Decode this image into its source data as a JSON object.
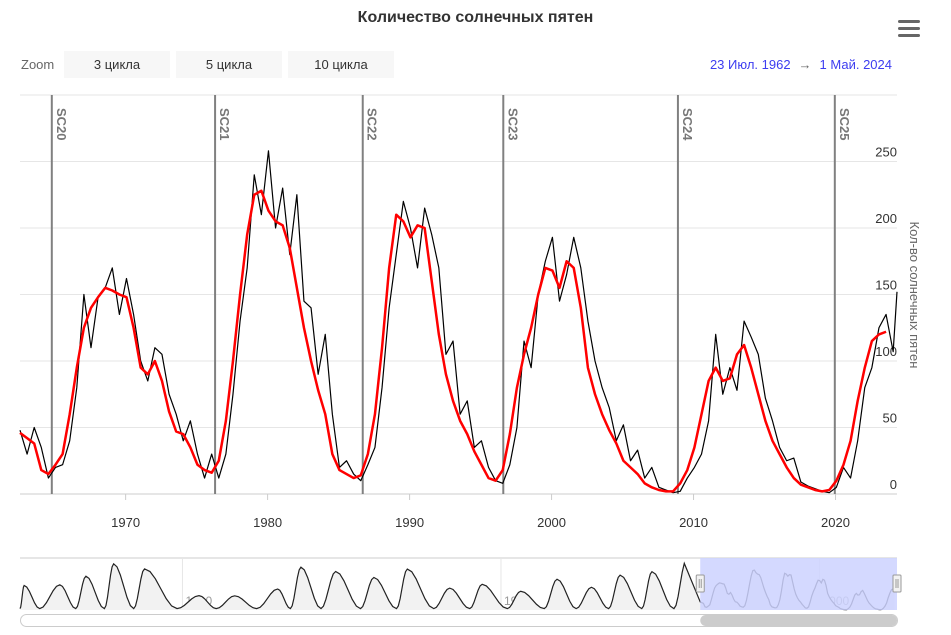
{
  "title": "Количество солнечных пятен",
  "menu_icon": "hamburger-menu-icon",
  "zoom": {
    "label": "Zoom",
    "buttons": [
      "3 цикла",
      "5 цикла",
      "10 цикла"
    ]
  },
  "range": {
    "from": "23 Июл. 1962",
    "arrow": "→",
    "to": "1 Май. 2024"
  },
  "colors": {
    "smoothed": "#ff0000",
    "raw": "#000000",
    "cycle_lines": "#808080",
    "range_text": "#3d3df0",
    "navigator_mask": "#ccd2ff"
  },
  "chart_data": {
    "type": "line",
    "title": "Количество солнечных пятен",
    "ylabel": "Кол-во солнечных пятен",
    "xlim": [
      1962.56,
      2024.33
    ],
    "ylim": [
      0,
      300
    ],
    "x_ticks": [
      "1970",
      "1980",
      "1990",
      "2000",
      "2010",
      "2020"
    ],
    "y_ticks": [
      "0",
      "50",
      "100",
      "150",
      "200",
      "250"
    ],
    "grid": true,
    "cycles": [
      {
        "label": "SC20",
        "x": 1964.8
      },
      {
        "label": "SC21",
        "x": 1976.3
      },
      {
        "label": "SC22",
        "x": 1986.7
      },
      {
        "label": "SC23",
        "x": 1996.6
      },
      {
        "label": "SC24",
        "x": 2008.9
      },
      {
        "label": "SC25",
        "x": 2019.95
      }
    ],
    "series": [
      {
        "color": "#000000",
        "start": 1962.56,
        "step": 0.5,
        "values": [
          48,
          30,
          50,
          35,
          12,
          20,
          22,
          40,
          80,
          150,
          110,
          148,
          155,
          170,
          135,
          162,
          135,
          100,
          85,
          110,
          105,
          75,
          60,
          40,
          55,
          30,
          12,
          30,
          12,
          30,
          75,
          130,
          170,
          240,
          210,
          258,
          200,
          230,
          180,
          225,
          145,
          140,
          90,
          120,
          60,
          20,
          25,
          15,
          10,
          22,
          35,
          80,
          140,
          180,
          220,
          200,
          170,
          215,
          195,
          170,
          105,
          115,
          60,
          70,
          35,
          40,
          20,
          10,
          8,
          22,
          50,
          115,
          95,
          150,
          175,
          193,
          145,
          165,
          193,
          170,
          130,
          100,
          80,
          65,
          40,
          52,
          25,
          33,
          12,
          20,
          5,
          3,
          1,
          2,
          12,
          20,
          30,
          55,
          120,
          75,
          95,
          78,
          130,
          118,
          105,
          72,
          55,
          35,
          25,
          27,
          9,
          6,
          4,
          2,
          1,
          5,
          20,
          12,
          40,
          80,
          95,
          125,
          135,
          107,
          152
        ]
      },
      {
        "color": "#ff0000",
        "start": 1962.56,
        "step": 0.5,
        "values": [
          46,
          42,
          38,
          18,
          15,
          22,
          30,
          60,
          95,
          125,
          140,
          148,
          155,
          153,
          150,
          148,
          125,
          95,
          90,
          100,
          85,
          62,
          47,
          45,
          35,
          22,
          18,
          16,
          25,
          55,
          100,
          150,
          195,
          225,
          228,
          213,
          205,
          202,
          185,
          155,
          125,
          100,
          78,
          60,
          30,
          18,
          15,
          12,
          14,
          30,
          60,
          110,
          170,
          210,
          205,
          193,
          202,
          200,
          160,
          120,
          90,
          70,
          55,
          45,
          32,
          22,
          12,
          10,
          18,
          45,
          80,
          105,
          125,
          150,
          170,
          168,
          155,
          175,
          170,
          140,
          95,
          75,
          60,
          48,
          38,
          25,
          20,
          15,
          8,
          5,
          3,
          2,
          2,
          8,
          18,
          35,
          60,
          85,
          95,
          85,
          87,
          105,
          112,
          95,
          75,
          55,
          40,
          30,
          20,
          12,
          7,
          5,
          3,
          2,
          3,
          10,
          22,
          40,
          70,
          95,
          115,
          120,
          122
        ]
      }
    ],
    "navigator": {
      "x_ticks": [
        "1800",
        "1900",
        "2000"
      ],
      "xlim": [
        1749,
        2024.33
      ],
      "selected": [
        1962.56,
        2024.33
      ],
      "cycle_minima": [
        1749,
        1755.2,
        1766.5,
        1775.5,
        1784.7,
        1798.3,
        1810.6,
        1823.3,
        1833.9,
        1843.5,
        1855.9,
        1867.2,
        1878.9,
        1890.2,
        1902.0,
        1913.6,
        1923.6,
        1933.8,
        1944.2,
        1954.3
      ],
      "cycle_maxima": [
        [
          1750.3,
          140
        ],
        [
          1761.5,
          144
        ],
        [
          1769.7,
          193
        ],
        [
          1778.4,
          264
        ],
        [
          1788.1,
          235
        ],
        [
          1805.2,
          82
        ],
        [
          1816.4,
          81
        ],
        [
          1829.9,
          120
        ],
        [
          1837.2,
          245
        ],
        [
          1848.1,
          220
        ],
        [
          1860.1,
          186
        ],
        [
          1870.6,
          234
        ],
        [
          1883.9,
          125
        ],
        [
          1894.1,
          147
        ],
        [
          1906.2,
          107
        ],
        [
          1917.6,
          176
        ],
        [
          1928.4,
          130
        ],
        [
          1937.4,
          199
        ],
        [
          1947.4,
          219
        ],
        [
          1958.2,
          285
        ]
      ]
    }
  }
}
